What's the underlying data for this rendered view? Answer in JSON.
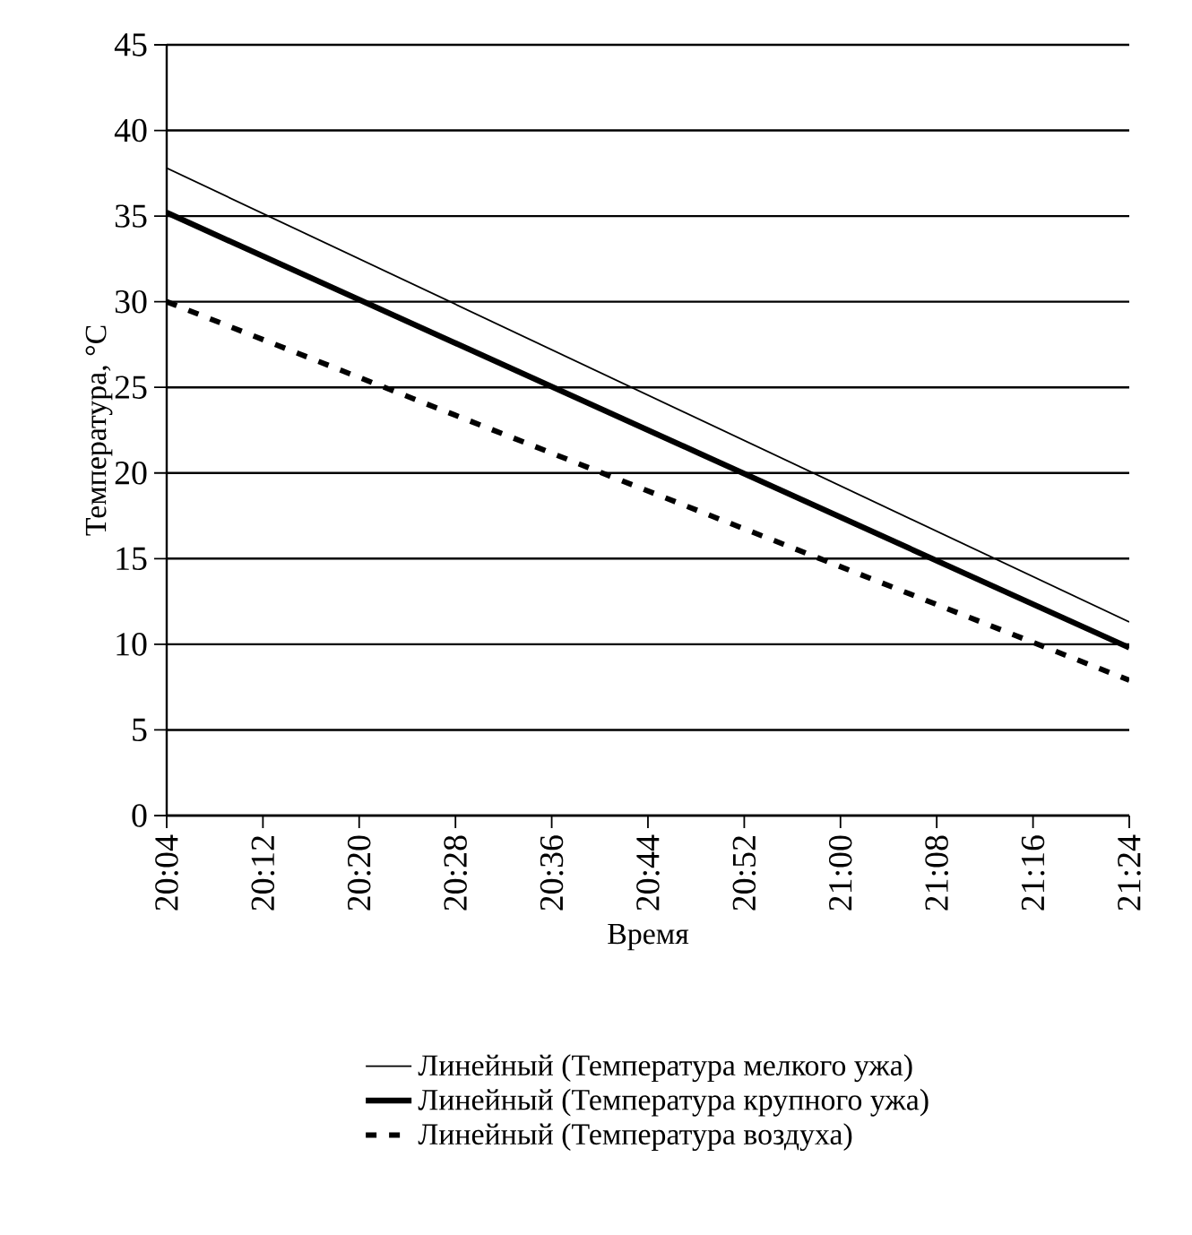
{
  "chart_data": {
    "type": "line",
    "xlabel": "Время",
    "ylabel": "Температура, °C",
    "x": [
      20.0667,
      21.4
    ],
    "series": [
      {
        "name": "Линейный (Температура мелкого ужа)",
        "color": "#000000",
        "line_style": "solid",
        "values": [
          37.8,
          11.3
        ]
      },
      {
        "name": "Линейный (Температура крупного ужа)",
        "color": "#000000",
        "line_style": "solid",
        "values": [
          35.2,
          9.8
        ]
      },
      {
        "name": "Линейный (Температура воздуха)",
        "color": "#000000",
        "line_style": "dashed",
        "values": [
          30.0,
          7.9
        ]
      }
    ],
    "xlim": [
      20.0667,
      21.4
    ],
    "xticks": [
      {
        "value": 20.0667,
        "label": "20:04"
      },
      {
        "value": 20.2,
        "label": "20:12"
      },
      {
        "value": 20.3333,
        "label": "20:20"
      },
      {
        "value": 20.4667,
        "label": "20:28"
      },
      {
        "value": 20.6,
        "label": "20:36"
      },
      {
        "value": 20.7333,
        "label": "20:44"
      },
      {
        "value": 20.8667,
        "label": "20:52"
      },
      {
        "value": 21.0,
        "label": "21:00"
      },
      {
        "value": 21.1333,
        "label": "21:08"
      },
      {
        "value": 21.2667,
        "label": "21:16"
      },
      {
        "value": 21.4,
        "label": "21:24"
      }
    ],
    "ylim": [
      0,
      45
    ],
    "yticks": [
      0,
      5,
      10,
      15,
      20,
      25,
      30,
      35,
      40,
      45
    ],
    "grid": "y",
    "legend": "bottom",
    "marker": "none"
  }
}
